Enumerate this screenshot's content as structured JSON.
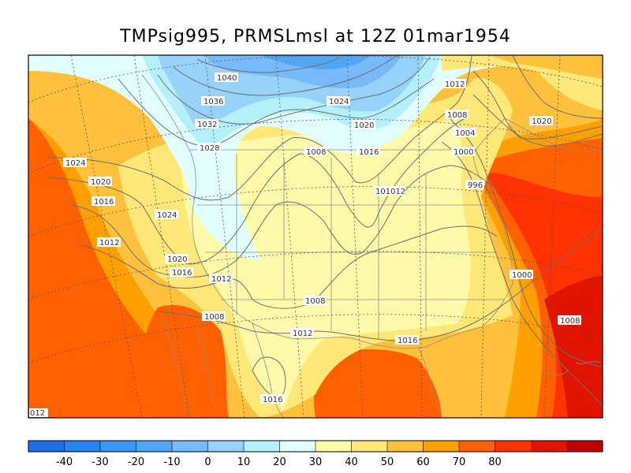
{
  "title": "TMPsig995, PRMSLmsl at 12Z  01mar1954",
  "colorbar": {
    "ticks": [
      "-40",
      "-30",
      "-20",
      "-10",
      "0",
      "10",
      "20",
      "30",
      "40",
      "50",
      "60",
      "70",
      "80"
    ],
    "colors": [
      "#1e6eeb",
      "#2882f0",
      "#3c96f5",
      "#50a5f5",
      "#78b9fa",
      "#96d2fa",
      "#b4f0fa",
      "#e1ffff",
      "#fffaaa",
      "#ffe878",
      "#ffc03c",
      "#ffa000",
      "#ff6000",
      "#ff3200",
      "#e11400",
      "#c00000"
    ]
  },
  "isobar_labels": {
    "l1040": "1040",
    "l1036": "1036",
    "l1032": "1032",
    "l1028": "1028",
    "l1024_west": "1024",
    "l1024_nc": "1024",
    "l1024_plains": "1024",
    "l1020_west": "1020",
    "l1020_ne": "1020",
    "l1020_canada": "1020",
    "l1020_rockies": "1020",
    "l1016_west": "1016",
    "l1016_lakes": "1016",
    "l1016_sw": "1016",
    "l1016_south": "1016",
    "l1016_mexico": "1016",
    "l1012_pacific": "1012",
    "l1012_sw": "1012",
    "l1012_tx": "1012",
    "l1012_ne": "1012",
    "l1012_edge": "012",
    "l1010_12": "101012",
    "l1008_north": "1008",
    "l1008_plains": "1008",
    "l1008_mexico": "1008",
    "l1008_atlantic": "1008",
    "l1008_ne": "1008",
    "l1004": "1004",
    "l1000_ne": "1000",
    "l1000_atl": "1000",
    "l996": "996"
  }
}
